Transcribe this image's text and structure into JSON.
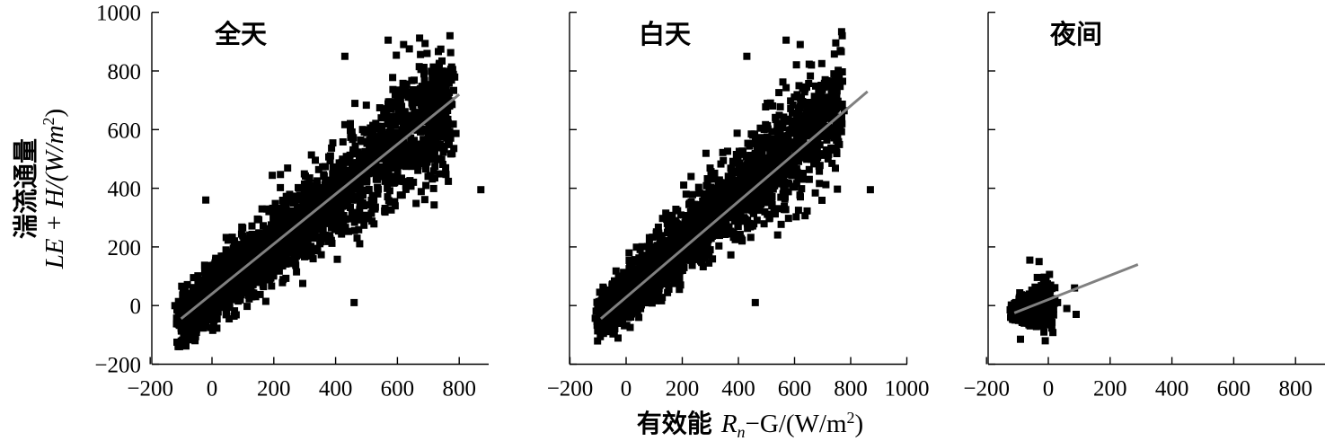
{
  "chart_data": [
    {
      "type": "scatter",
      "title": "全天",
      "xlim": [
        -200,
        900
      ],
      "ylim": [
        -200,
        1000
      ],
      "x_ticks": [
        "−200",
        "0",
        "200",
        "400",
        "600",
        "800"
      ],
      "x_tick_values": [
        -200,
        0,
        200,
        400,
        600,
        800
      ],
      "y_ticks": [
        "−200",
        "0",
        "200",
        "400",
        "600",
        "800",
        "1000"
      ],
      "y_tick_values": [
        -200,
        0,
        200,
        400,
        600,
        800,
        1000
      ],
      "fit_line": {
        "x": [
          -100,
          800
        ],
        "y": [
          -45,
          720
        ]
      },
      "cloud": {
        "x_min": -100,
        "x_max": 780,
        "slope": 0.85,
        "intercept": 40,
        "spread": 110,
        "n": 2600
      },
      "extra_points": [
        {
          "x": 570,
          "y": 905
        },
        {
          "x": 770,
          "y": 920
        },
        {
          "x": 620,
          "y": 890
        },
        {
          "x": 430,
          "y": 850
        },
        {
          "x": 870,
          "y": 395
        },
        {
          "x": 460,
          "y": 10
        },
        {
          "x": 60,
          "y": 170
        },
        {
          "x": -20,
          "y": 360
        }
      ]
    },
    {
      "type": "scatter",
      "title": "白天",
      "xlim": [
        -200,
        1000
      ],
      "ylim": [
        -200,
        1000
      ],
      "x_ticks": [
        "−200",
        "0",
        "200",
        "400",
        "600",
        "800",
        "1000"
      ],
      "x_tick_values": [
        -200,
        0,
        200,
        400,
        600,
        800,
        1000
      ],
      "fit_line": {
        "x": [
          -90,
          860
        ],
        "y": [
          -45,
          730
        ]
      },
      "cloud": {
        "x_min": -90,
        "x_max": 770,
        "slope": 0.85,
        "intercept": 40,
        "spread": 105,
        "n": 2300
      },
      "extra_points": [
        {
          "x": 570,
          "y": 905
        },
        {
          "x": 770,
          "y": 920
        },
        {
          "x": 620,
          "y": 890
        },
        {
          "x": 430,
          "y": 850
        },
        {
          "x": 870,
          "y": 395
        },
        {
          "x": 460,
          "y": 10
        },
        {
          "x": 60,
          "y": 170
        }
      ]
    },
    {
      "type": "scatter",
      "title": "夜间",
      "xlim": [
        -200,
        900
      ],
      "ylim": [
        -200,
        1000
      ],
      "x_ticks": [
        "−200",
        "0",
        "200",
        "400",
        "600",
        "800"
      ],
      "x_tick_values": [
        -200,
        0,
        200,
        400,
        600,
        800
      ],
      "fit_line": {
        "x": [
          -110,
          290
        ],
        "y": [
          -25,
          140
        ]
      },
      "cloud": {
        "x_min": -110,
        "x_max": 10,
        "slope": 0.2,
        "intercept": 5,
        "spread": 40,
        "n": 700
      },
      "extra_points": [
        {
          "x": -60,
          "y": 155
        },
        {
          "x": -30,
          "y": 150
        },
        {
          "x": 85,
          "y": 60
        },
        {
          "x": 60,
          "y": -10
        },
        {
          "x": 30,
          "y": 10
        },
        {
          "x": 90,
          "y": -30
        },
        {
          "x": -90,
          "y": -115
        },
        {
          "x": -10,
          "y": -120
        }
      ]
    }
  ],
  "y_axis_title": {
    "line1": "湍流通量",
    "line2_prefix": "LE + H/(W/m",
    "line2_sup": "2",
    "line2_suffix": ")"
  },
  "x_axis_title": {
    "cn": "有效能",
    "main": "R",
    "sub": "n",
    "rest": "−G/(W/m",
    "sup": "2",
    "suffix": ")"
  },
  "colors": {
    "points": "#000000",
    "fit_line": "#808080",
    "axes": "#000000"
  }
}
